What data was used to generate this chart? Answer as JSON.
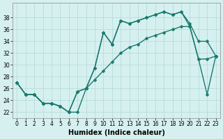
{
  "line_upper_x": [
    0,
    1,
    2,
    3,
    4,
    5,
    6,
    7,
    8,
    9,
    10,
    11,
    12,
    13,
    14,
    15,
    16,
    17,
    18,
    19,
    20,
    21,
    22,
    23
  ],
  "line_upper_y": [
    27,
    25,
    25,
    23.5,
    23.5,
    23,
    22,
    22,
    26,
    29.5,
    35.5,
    33.5,
    37.5,
    37,
    37.5,
    38,
    38.5,
    39,
    38.5,
    39,
    37,
    34,
    34,
    31.5
  ],
  "line_mid_x": [
    0,
    1,
    2,
    3,
    4,
    5,
    6,
    7,
    8,
    9,
    10,
    11,
    12,
    13,
    14,
    15,
    16,
    17,
    18,
    19,
    20,
    21,
    22,
    23
  ],
  "line_mid_y": [
    27,
    25,
    25,
    23.5,
    23.5,
    23,
    22,
    25.5,
    26,
    29.5,
    35.5,
    33.5,
    37.5,
    37,
    37.5,
    38,
    38.5,
    39,
    38.5,
    39,
    36.5,
    31,
    25,
    31.5
  ],
  "line_low_x": [
    0,
    1,
    2,
    3,
    4,
    5,
    6,
    7,
    8,
    9,
    10,
    11,
    12,
    13,
    14,
    15,
    16,
    17,
    18,
    19,
    20,
    21,
    22,
    23
  ],
  "line_low_y": [
    27,
    25,
    25,
    23.5,
    23.5,
    23,
    22,
    25.5,
    26,
    27.5,
    29,
    30.5,
    32,
    33,
    33.5,
    34.5,
    35,
    35.5,
    36,
    36.5,
    36.5,
    31,
    31,
    31.5
  ],
  "color": "#1a7a6e",
  "bg_color": "#d6f0f0",
  "grid_color": "#b0d8d8",
  "xlabel": "Humidex (Indice chaleur)",
  "ylim": [
    21,
    40
  ],
  "xlim": [
    -0.5,
    23.5
  ],
  "yticks": [
    22,
    24,
    26,
    28,
    30,
    32,
    34,
    36,
    38
  ],
  "xticks": [
    0,
    1,
    2,
    3,
    4,
    5,
    6,
    7,
    8,
    9,
    10,
    11,
    12,
    13,
    14,
    15,
    16,
    17,
    18,
    19,
    20,
    21,
    22,
    23
  ],
  "marker": "D",
  "markersize": 2.5,
  "linewidth": 1.0,
  "xlabel_fontsize": 7,
  "tick_fontsize": 5.5
}
